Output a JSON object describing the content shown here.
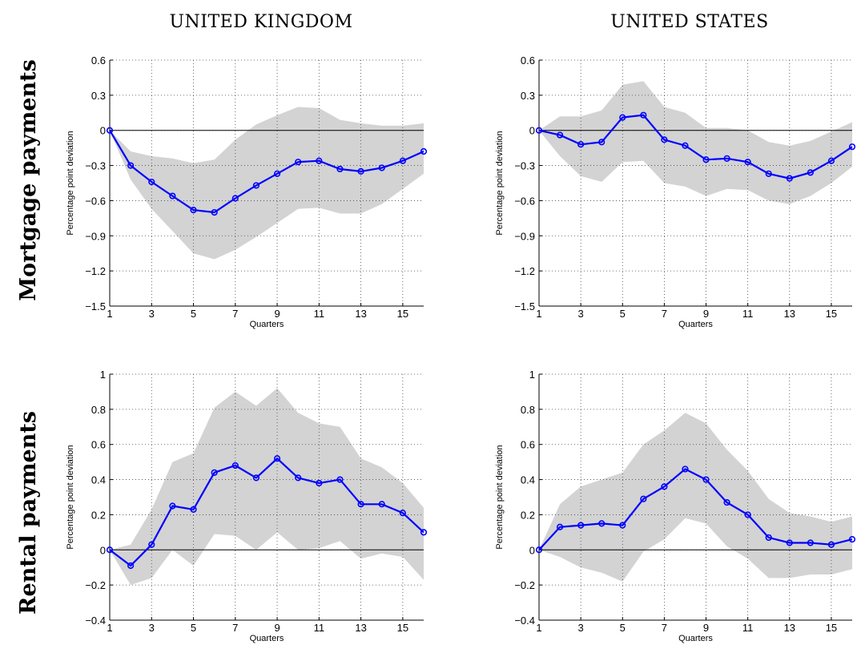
{
  "column_titles": [
    "UNITED KINGDOM",
    "UNITED STATES"
  ],
  "row_titles": [
    "Mortgage payments",
    "Rental payments"
  ],
  "chart_data": [
    {
      "type": "line",
      "panel": "mortgage-uk",
      "xlabel": "Quarters",
      "ylabel": "Percentage point deviation",
      "xlim": [
        1,
        16
      ],
      "ylim": [
        -1.5,
        0.6
      ],
      "xticks": [
        1,
        3,
        5,
        7,
        9,
        11,
        13,
        15
      ],
      "yticks": [
        -1.5,
        -1.2,
        -0.9,
        -0.6,
        -0.3,
        0,
        0.3,
        0.6
      ],
      "ytick_labels": [
        "−1.5",
        "−1.2",
        "−0.9",
        "−0.6",
        "−0.3",
        "0",
        "0.3",
        "0.6"
      ],
      "grid": true,
      "colors": {
        "line": "#0000ff",
        "band": "#d3d3d3",
        "zero": "#000000"
      },
      "x": [
        1,
        2,
        3,
        4,
        5,
        6,
        7,
        8,
        9,
        10,
        11,
        12,
        13,
        14,
        15,
        16
      ],
      "series": [
        {
          "values": [
            0,
            -0.3,
            -0.44,
            -0.56,
            -0.68,
            -0.7,
            -0.58,
            -0.47,
            -0.37,
            -0.27,
            -0.26,
            -0.33,
            -0.35,
            -0.32,
            -0.26,
            -0.18
          ]
        },
        {
          "band": "upper",
          "values": [
            0,
            -0.18,
            -0.22,
            -0.24,
            -0.28,
            -0.25,
            -0.08,
            0.05,
            0.13,
            0.2,
            0.19,
            0.09,
            0.06,
            0.04,
            0.04,
            0.06
          ]
        },
        {
          "band": "lower",
          "values": [
            0,
            -0.42,
            -0.67,
            -0.86,
            -1.05,
            -1.1,
            -1.02,
            -0.91,
            -0.79,
            -0.67,
            -0.66,
            -0.71,
            -0.71,
            -0.63,
            -0.5,
            -0.37
          ]
        }
      ]
    },
    {
      "type": "line",
      "panel": "mortgage-us",
      "xlabel": "Quarters",
      "ylabel": "Percentage point deviation",
      "xlim": [
        1,
        16
      ],
      "ylim": [
        -1.5,
        0.6
      ],
      "xticks": [
        1,
        3,
        5,
        7,
        9,
        11,
        13,
        15
      ],
      "yticks": [
        -1.5,
        -1.2,
        -0.9,
        -0.6,
        -0.3,
        0,
        0.3,
        0.6
      ],
      "ytick_labels": [
        "−1.5",
        "−1.2",
        "−0.9",
        "−0.6",
        "−0.3",
        "0",
        "0.3",
        "0.6"
      ],
      "grid": true,
      "colors": {
        "line": "#0000ff",
        "band": "#d3d3d3",
        "zero": "#000000"
      },
      "x": [
        1,
        2,
        3,
        4,
        5,
        6,
        7,
        8,
        9,
        10,
        11,
        12,
        13,
        14,
        15,
        16
      ],
      "series": [
        {
          "values": [
            0,
            -0.04,
            -0.12,
            -0.1,
            0.11,
            0.13,
            -0.08,
            -0.13,
            -0.25,
            -0.24,
            -0.27,
            -0.37,
            -0.41,
            -0.36,
            -0.26,
            -0.14
          ]
        },
        {
          "band": "upper",
          "values": [
            0,
            0.12,
            0.12,
            0.17,
            0.39,
            0.42,
            0.2,
            0.15,
            0.02,
            0.02,
            0.0,
            -0.1,
            -0.13,
            -0.09,
            -0.01,
            0.07
          ]
        },
        {
          "band": "lower",
          "values": [
            0,
            -0.22,
            -0.39,
            -0.44,
            -0.27,
            -0.26,
            -0.45,
            -0.48,
            -0.56,
            -0.5,
            -0.51,
            -0.6,
            -0.63,
            -0.56,
            -0.45,
            -0.31
          ]
        }
      ]
    },
    {
      "type": "line",
      "panel": "rental-uk",
      "xlabel": "Quarters",
      "ylabel": "Percentage point deviation",
      "xlim": [
        1,
        16
      ],
      "ylim": [
        -0.4,
        1.0
      ],
      "xticks": [
        1,
        3,
        5,
        7,
        9,
        11,
        13,
        15
      ],
      "yticks": [
        -0.4,
        -0.2,
        0,
        0.2,
        0.4,
        0.6,
        0.8,
        1.0
      ],
      "ytick_labels": [
        "−0.4",
        "−0.2",
        "0",
        "0.2",
        "0.4",
        "0.6",
        "0.8",
        "1"
      ],
      "grid": true,
      "colors": {
        "line": "#0000ff",
        "band": "#d3d3d3",
        "zero": "#000000"
      },
      "x": [
        1,
        2,
        3,
        4,
        5,
        6,
        7,
        8,
        9,
        10,
        11,
        12,
        13,
        14,
        15,
        16
      ],
      "series": [
        {
          "values": [
            0,
            -0.09,
            0.03,
            0.25,
            0.23,
            0.44,
            0.48,
            0.41,
            0.52,
            0.41,
            0.38,
            0.4,
            0.26,
            0.26,
            0.21,
            0.1
          ]
        },
        {
          "band": "upper",
          "values": [
            0,
            0.03,
            0.23,
            0.5,
            0.55,
            0.81,
            0.9,
            0.82,
            0.92,
            0.78,
            0.72,
            0.7,
            0.52,
            0.47,
            0.38,
            0.24
          ]
        },
        {
          "band": "lower",
          "values": [
            0,
            -0.2,
            -0.16,
            0.0,
            -0.09,
            0.09,
            0.08,
            0.0,
            0.1,
            0.0,
            0.01,
            0.05,
            -0.05,
            -0.02,
            -0.04,
            -0.17
          ]
        }
      ]
    },
    {
      "type": "line",
      "panel": "rental-us",
      "xlabel": "Quarters",
      "ylabel": "Percentage point deviation",
      "xlim": [
        1,
        16
      ],
      "ylim": [
        -0.4,
        1.0
      ],
      "xticks": [
        1,
        3,
        5,
        7,
        9,
        11,
        13,
        15
      ],
      "yticks": [
        -0.4,
        -0.2,
        0,
        0.2,
        0.4,
        0.6,
        0.8,
        1.0
      ],
      "ytick_labels": [
        "−0.4",
        "−0.2",
        "0",
        "0.2",
        "0.4",
        "0.6",
        "0.8",
        "1"
      ],
      "grid": true,
      "colors": {
        "line": "#0000ff",
        "band": "#d3d3d3",
        "zero": "#000000"
      },
      "x": [
        1,
        2,
        3,
        4,
        5,
        6,
        7,
        8,
        9,
        10,
        11,
        12,
        13,
        14,
        15,
        16
      ],
      "series": [
        {
          "values": [
            0,
            0.13,
            0.14,
            0.15,
            0.14,
            0.29,
            0.36,
            0.46,
            0.4,
            0.27,
            0.2,
            0.07,
            0.04,
            0.04,
            0.03,
            0.06
          ]
        },
        {
          "band": "upper",
          "values": [
            0,
            0.26,
            0.36,
            0.4,
            0.44,
            0.6,
            0.68,
            0.78,
            0.72,
            0.57,
            0.45,
            0.29,
            0.21,
            0.19,
            0.16,
            0.19
          ]
        },
        {
          "band": "lower",
          "values": [
            0,
            -0.04,
            -0.1,
            -0.13,
            -0.18,
            -0.01,
            0.06,
            0.18,
            0.15,
            0.02,
            -0.05,
            -0.16,
            -0.16,
            -0.14,
            -0.14,
            -0.11
          ]
        }
      ]
    }
  ]
}
